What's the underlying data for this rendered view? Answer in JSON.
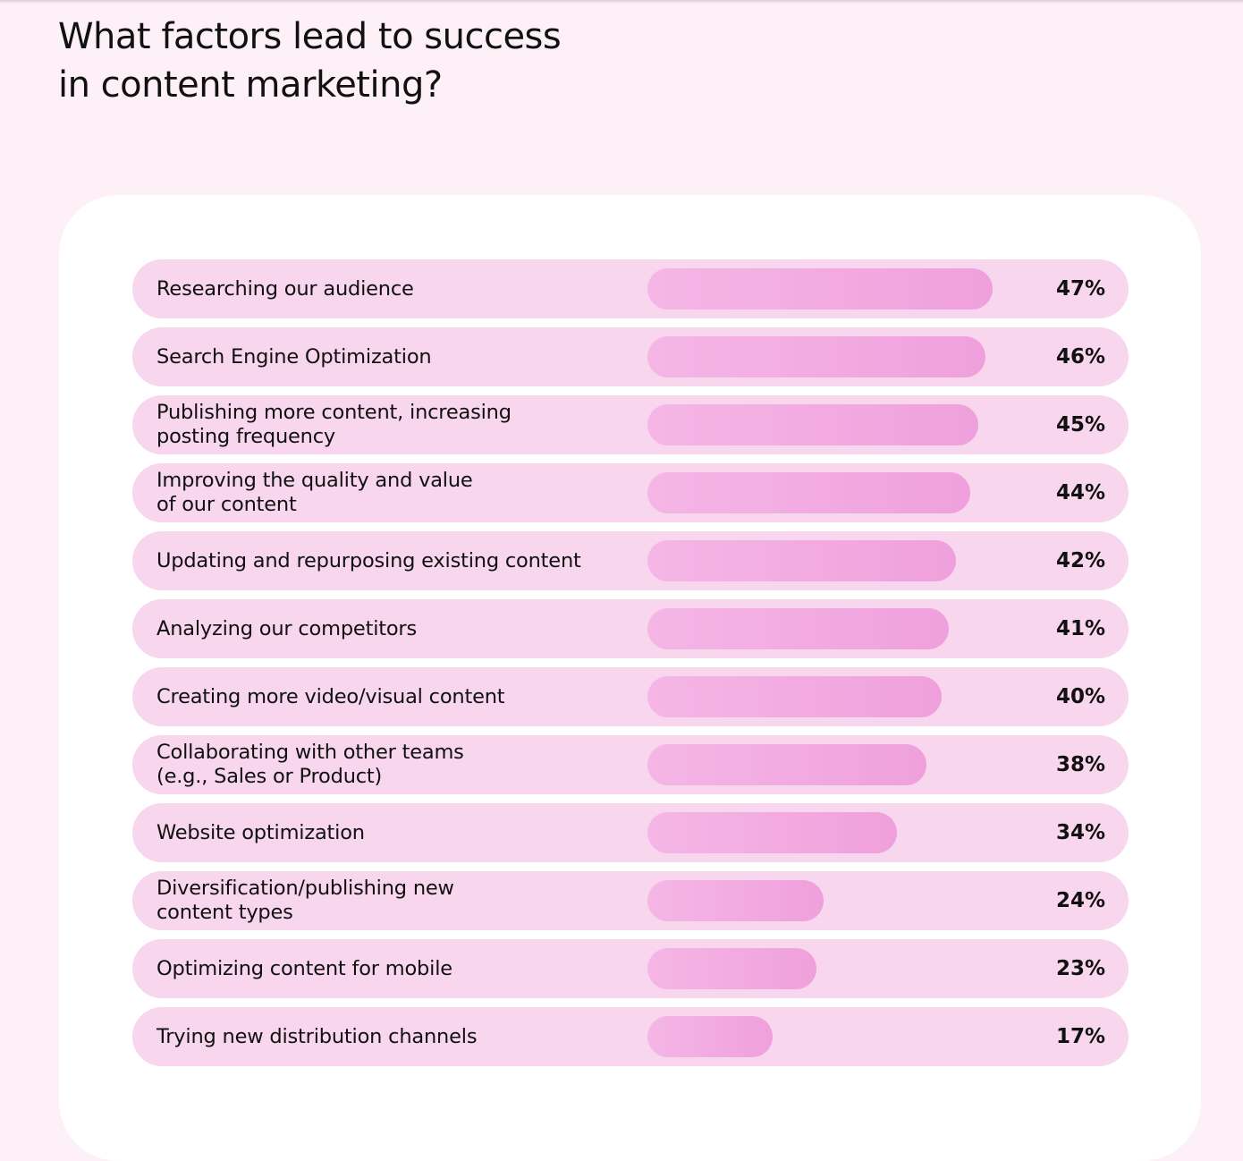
{
  "title": {
    "line1": "What factors lead to success",
    "line2": "in content marketing?"
  },
  "colors": {
    "page_background": "#fdf0f7",
    "card_background": "#ffffff",
    "row_background": "#f8d6ee",
    "bar_gradient_start": "#f5b6e5",
    "bar_gradient_end": "#efa0dc",
    "text": "#111111"
  },
  "chart_data": {
    "type": "bar",
    "orientation": "horizontal",
    "title": "What factors lead to success in content marketing?",
    "xlabel": "",
    "ylabel": "",
    "xlim": [
      0,
      50
    ],
    "unit": "%",
    "categories": [
      "Researching our audience",
      "Search Engine Optimization",
      "Publishing more content, increasing\nposting frequency",
      "Improving the quality and value\nof our content",
      "Updating and repurposing existing content",
      "Analyzing our competitors",
      "Creating more video/visual content",
      "Collaborating with other teams\n(e.g., Sales or Product)",
      "Website optimization",
      "Diversification/publishing new\ncontent types",
      "Optimizing content for mobile",
      "Trying new distribution channels"
    ],
    "values": [
      47,
      46,
      45,
      44,
      42,
      41,
      40,
      38,
      34,
      24,
      23,
      17
    ],
    "value_labels": [
      "47%",
      "46%",
      "45%",
      "44%",
      "42%",
      "41%",
      "40%",
      "38%",
      "34%",
      "24%",
      "23%",
      "17%"
    ]
  }
}
